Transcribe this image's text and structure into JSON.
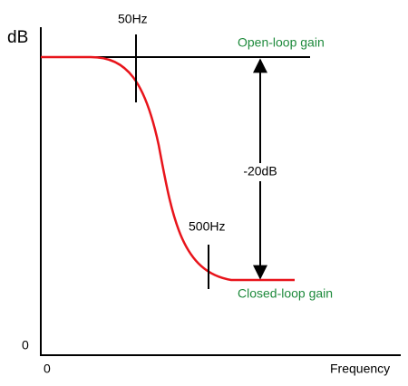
{
  "axes": {
    "y_label": "dB",
    "y_zero": "0",
    "x_zero": "0",
    "x_label": "Frequency"
  },
  "markers": {
    "low": "50Hz",
    "high": "500Hz"
  },
  "curves": {
    "open_loop": "Open-loop gain",
    "closed_loop": "Closed-loop gain"
  },
  "difference": "-20dB"
}
